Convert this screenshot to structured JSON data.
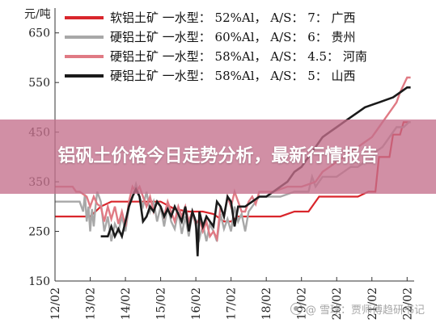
{
  "chart_data": {
    "type": "line",
    "title": "",
    "xlabel": "",
    "ylabel": "元/吨",
    "ylim": [
      150,
      700
    ],
    "yticks": [
      150,
      250,
      350,
      450,
      550,
      650
    ],
    "xlim": [
      12.0,
      22.2
    ],
    "xticks": [
      {
        "value": 12.0,
        "label": "12/02"
      },
      {
        "value": 13.0,
        "label": "13/02"
      },
      {
        "value": 14.0,
        "label": "14/02"
      },
      {
        "value": 15.0,
        "label": "15/02"
      },
      {
        "value": 16.0,
        "label": "16/02"
      },
      {
        "value": 17.0,
        "label": "17/02"
      },
      {
        "value": 18.0,
        "label": "18/02"
      },
      {
        "value": 19.0,
        "label": "19/02"
      },
      {
        "value": 20.0,
        "label": "20/02"
      },
      {
        "value": 21.0,
        "label": "21/02"
      },
      {
        "value": 22.0,
        "label": "22/02"
      }
    ],
    "grid": false,
    "legend_position": "top",
    "series": [
      {
        "name": "软铝土矿 一水型： 52%Al， A/S： 7： 广西",
        "color": "#d9262c",
        "width": 2.2,
        "points": [
          [
            12.0,
            280
          ],
          [
            13.0,
            280
          ],
          [
            13.3,
            300
          ],
          [
            13.6,
            310
          ],
          [
            14.0,
            310
          ],
          [
            14.4,
            310
          ],
          [
            15.0,
            310
          ],
          [
            15.4,
            295
          ],
          [
            15.8,
            290
          ],
          [
            16.2,
            290
          ],
          [
            16.5,
            285
          ],
          [
            16.8,
            270
          ],
          [
            17.0,
            270
          ],
          [
            17.2,
            280
          ],
          [
            17.6,
            280
          ],
          [
            18.0,
            280
          ],
          [
            18.4,
            280
          ],
          [
            18.8,
            290
          ],
          [
            19.2,
            290
          ],
          [
            19.5,
            320
          ],
          [
            19.8,
            320
          ],
          [
            20.2,
            320
          ],
          [
            20.6,
            320
          ],
          [
            20.9,
            330
          ],
          [
            21.1,
            330
          ],
          [
            21.2,
            400
          ],
          [
            21.5,
            400
          ],
          [
            21.6,
            445
          ],
          [
            21.8,
            445
          ],
          [
            21.9,
            470
          ],
          [
            22.1,
            470
          ]
        ]
      },
      {
        "name": "硬铝土矿 一水型： 60%Al， A/S： 6： 贵州",
        "color": "#a8a8a8",
        "width": 2.4,
        "points": [
          [
            12.0,
            310
          ],
          [
            12.7,
            310
          ],
          [
            12.8,
            290
          ],
          [
            12.85,
            325
          ],
          [
            12.9,
            270
          ],
          [
            12.95,
            300
          ],
          [
            13.0,
            250
          ],
          [
            13.05,
            295
          ],
          [
            13.1,
            260
          ],
          [
            13.15,
            300
          ],
          [
            13.2,
            330
          ],
          [
            13.3,
            310
          ],
          [
            13.4,
            250
          ],
          [
            13.5,
            280
          ],
          [
            13.6,
            230
          ],
          [
            13.7,
            265
          ],
          [
            13.8,
            250
          ],
          [
            13.9,
            280
          ],
          [
            14.0,
            250
          ],
          [
            14.1,
            300
          ],
          [
            14.2,
            320
          ],
          [
            14.3,
            345
          ],
          [
            14.4,
            320
          ],
          [
            14.5,
            300
          ],
          [
            14.6,
            330
          ],
          [
            14.7,
            290
          ],
          [
            14.8,
            310
          ],
          [
            14.9,
            270
          ],
          [
            15.0,
            300
          ],
          [
            15.1,
            260
          ],
          [
            15.2,
            300
          ],
          [
            15.3,
            270
          ],
          [
            15.4,
            255
          ],
          [
            15.5,
            290
          ],
          [
            15.6,
            245
          ],
          [
            15.7,
            280
          ],
          [
            15.8,
            240
          ],
          [
            15.9,
            290
          ],
          [
            16.0,
            260
          ],
          [
            16.1,
            235
          ],
          [
            16.2,
            265
          ],
          [
            16.3,
            230
          ],
          [
            16.4,
            265
          ],
          [
            16.5,
            250
          ],
          [
            16.6,
            230
          ],
          [
            16.7,
            285
          ],
          [
            16.8,
            255
          ],
          [
            16.9,
            275
          ],
          [
            17.0,
            250
          ],
          [
            17.1,
            300
          ],
          [
            17.2,
            270
          ],
          [
            17.3,
            285
          ],
          [
            17.4,
            250
          ],
          [
            17.5,
            290
          ],
          [
            17.6,
            300
          ],
          [
            17.7,
            310
          ],
          [
            17.8,
            320
          ],
          [
            18.0,
            320
          ],
          [
            18.4,
            320
          ],
          [
            18.6,
            325
          ],
          [
            18.8,
            330
          ],
          [
            19.0,
            330
          ],
          [
            19.2,
            330
          ],
          [
            19.3,
            360
          ],
          [
            19.4,
            340
          ],
          [
            19.6,
            360
          ],
          [
            19.8,
            360
          ],
          [
            20.0,
            360
          ],
          [
            20.2,
            370
          ],
          [
            20.4,
            380
          ],
          [
            20.6,
            380
          ],
          [
            20.8,
            390
          ],
          [
            21.0,
            395
          ],
          [
            21.1,
            410
          ],
          [
            21.3,
            420
          ],
          [
            21.5,
            440
          ],
          [
            21.7,
            460
          ],
          [
            21.9,
            460
          ],
          [
            22.05,
            470
          ],
          [
            22.1,
            470
          ]
        ]
      },
      {
        "name": "硬铝土矿 一水型： 58%Al， A/S： 4.5： 河南",
        "color": "#e07a84",
        "width": 2.4,
        "points": [
          [
            12.0,
            340
          ],
          [
            12.5,
            340
          ],
          [
            12.6,
            330
          ],
          [
            12.7,
            330
          ],
          [
            12.9,
            320
          ],
          [
            13.0,
            300
          ],
          [
            13.1,
            320
          ],
          [
            13.2,
            305
          ],
          [
            13.3,
            300
          ],
          [
            13.4,
            270
          ],
          [
            13.5,
            300
          ],
          [
            13.6,
            275
          ],
          [
            13.7,
            300
          ],
          [
            13.8,
            265
          ],
          [
            13.9,
            290
          ],
          [
            14.0,
            260
          ],
          [
            14.1,
            310
          ],
          [
            14.2,
            340
          ],
          [
            14.3,
            330
          ],
          [
            14.4,
            340
          ],
          [
            14.5,
            320
          ],
          [
            14.6,
            300
          ],
          [
            14.7,
            320
          ],
          [
            14.8,
            290
          ],
          [
            14.9,
            310
          ],
          [
            15.0,
            300
          ],
          [
            15.1,
            280
          ],
          [
            15.2,
            310
          ],
          [
            15.3,
            290
          ],
          [
            15.4,
            270
          ],
          [
            15.5,
            300
          ],
          [
            15.6,
            280
          ],
          [
            15.7,
            300
          ],
          [
            15.8,
            270
          ],
          [
            15.9,
            290
          ],
          [
            16.0,
            265
          ],
          [
            16.1,
            275
          ],
          [
            16.2,
            250
          ],
          [
            16.3,
            270
          ],
          [
            16.4,
            240
          ],
          [
            16.5,
            250
          ],
          [
            16.6,
            235
          ],
          [
            16.7,
            300
          ],
          [
            16.8,
            280
          ],
          [
            16.9,
            320
          ],
          [
            17.0,
            300
          ],
          [
            17.1,
            330
          ],
          [
            17.2,
            310
          ],
          [
            17.3,
            290
          ],
          [
            17.4,
            290
          ],
          [
            17.5,
            310
          ],
          [
            17.6,
            320
          ],
          [
            17.7,
            305
          ],
          [
            17.8,
            330
          ],
          [
            18.0,
            330
          ],
          [
            18.2,
            330
          ],
          [
            18.4,
            335
          ],
          [
            18.6,
            340
          ],
          [
            18.8,
            340
          ],
          [
            19.0,
            340
          ],
          [
            19.2,
            345
          ],
          [
            19.4,
            350
          ],
          [
            19.6,
            370
          ],
          [
            19.8,
            380
          ],
          [
            20.0,
            390
          ],
          [
            20.2,
            400
          ],
          [
            20.4,
            410
          ],
          [
            20.6,
            420
          ],
          [
            20.8,
            430
          ],
          [
            21.0,
            440
          ],
          [
            21.2,
            460
          ],
          [
            21.4,
            480
          ],
          [
            21.6,
            500
          ],
          [
            21.7,
            510
          ],
          [
            21.8,
            530
          ],
          [
            21.9,
            545
          ],
          [
            22.0,
            560
          ],
          [
            22.1,
            560
          ]
        ]
      },
      {
        "name": "硬铝土矿 一水型： 58%Al， A/S： 5： 山西",
        "color": "#1a1a1a",
        "width": 2.6,
        "points": [
          [
            13.3,
            240
          ],
          [
            13.5,
            240
          ],
          [
            13.6,
            260
          ],
          [
            13.7,
            240
          ],
          [
            13.8,
            255
          ],
          [
            13.9,
            240
          ],
          [
            14.0,
            270
          ],
          [
            14.1,
            300
          ],
          [
            14.2,
            320
          ],
          [
            14.3,
            335
          ],
          [
            14.4,
            320
          ],
          [
            14.5,
            270
          ],
          [
            14.6,
            280
          ],
          [
            14.7,
            300
          ],
          [
            14.8,
            290
          ],
          [
            14.9,
            310
          ],
          [
            15.0,
            300
          ],
          [
            15.1,
            280
          ],
          [
            15.2,
            295
          ],
          [
            15.3,
            280
          ],
          [
            15.4,
            300
          ],
          [
            15.5,
            285
          ],
          [
            15.6,
            270
          ],
          [
            15.7,
            300
          ],
          [
            15.8,
            250
          ],
          [
            15.9,
            290
          ],
          [
            16.0,
            270
          ],
          [
            16.05,
            200
          ],
          [
            16.1,
            290
          ],
          [
            16.2,
            260
          ],
          [
            16.3,
            280
          ],
          [
            16.4,
            270
          ],
          [
            16.5,
            260
          ],
          [
            16.6,
            310
          ],
          [
            16.7,
            300
          ],
          [
            16.8,
            280
          ],
          [
            16.9,
            320
          ],
          [
            17.0,
            310
          ],
          [
            17.1,
            260
          ],
          [
            17.2,
            300
          ],
          [
            17.4,
            300
          ],
          [
            17.6,
            310
          ],
          [
            17.8,
            320
          ],
          [
            18.0,
            320
          ],
          [
            18.2,
            330
          ],
          [
            18.4,
            340
          ],
          [
            18.6,
            350
          ],
          [
            18.8,
            370
          ],
          [
            19.0,
            380
          ],
          [
            19.2,
            400
          ],
          [
            19.4,
            420
          ],
          [
            19.6,
            440
          ],
          [
            19.8,
            450
          ],
          [
            20.0,
            460
          ],
          [
            20.2,
            470
          ],
          [
            20.4,
            480
          ],
          [
            20.6,
            490
          ],
          [
            20.8,
            500
          ],
          [
            21.0,
            505
          ],
          [
            21.2,
            510
          ],
          [
            21.4,
            515
          ],
          [
            21.6,
            520
          ],
          [
            21.8,
            530
          ],
          [
            22.0,
            540
          ],
          [
            22.1,
            540
          ]
        ]
      }
    ]
  },
  "banner": {
    "title": "铝矾土价格今日走势分析，最新行情报告"
  },
  "watermark": {
    "text": "@ 雪球：贾师傅趋研书记"
  }
}
